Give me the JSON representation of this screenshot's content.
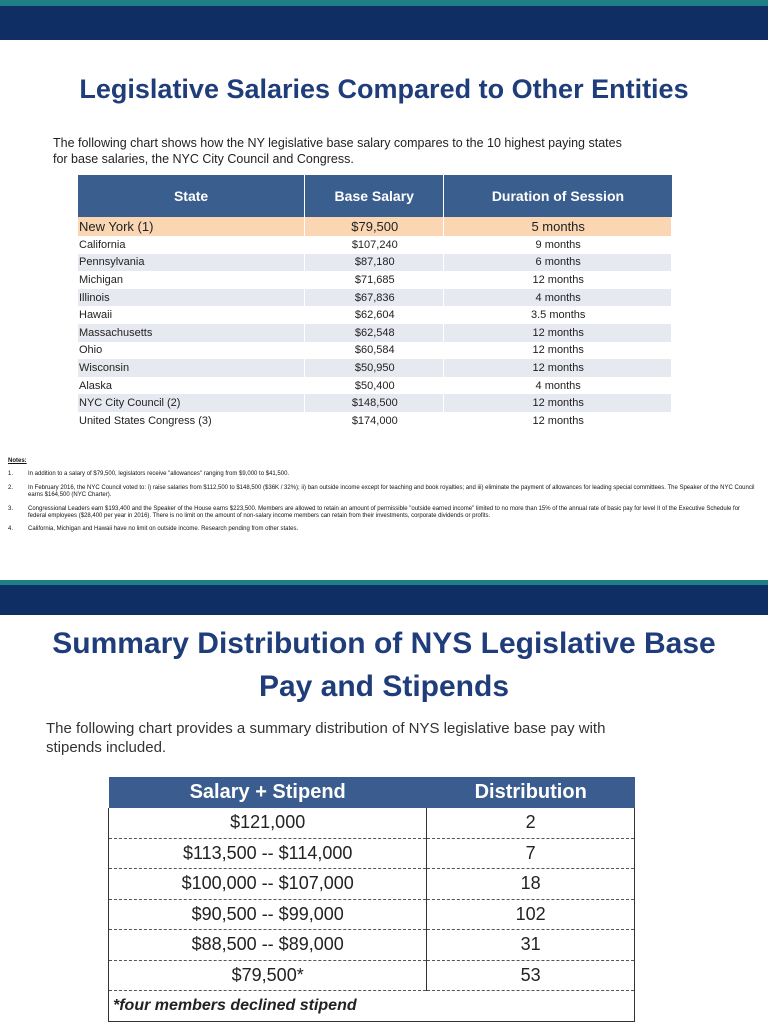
{
  "slide1": {
    "title": "Legislative Salaries Compared to Other Entities",
    "intro": "The following chart shows how the NY legislative base salary compares to the 10 highest paying states for base salaries, the NYC City Council and Congress.",
    "table": {
      "columns": [
        "State",
        "Base Salary",
        "Duration of Session"
      ],
      "rows": [
        [
          "New York (1)",
          "$79,500",
          "5 months"
        ],
        [
          "California",
          "$107,240",
          "9 months"
        ],
        [
          "Pennsylvania",
          "$87,180",
          "6 months"
        ],
        [
          "Michigan",
          "$71,685",
          "12 months"
        ],
        [
          "Illinois",
          "$67,836",
          "4 months"
        ],
        [
          "Hawaii",
          "$62,604",
          "3.5 months"
        ],
        [
          "Massachusetts",
          "$62,548",
          "12 months"
        ],
        [
          "Ohio",
          "$60,584",
          "12 months"
        ],
        [
          "Wisconsin",
          "$50,950",
          "12 months"
        ],
        [
          "Alaska",
          "$50,400",
          "4 months"
        ],
        [
          "NYC City Council (2)",
          "$148,500",
          "12 months"
        ],
        [
          "United States Congress (3)",
          "$174,000",
          "12 months"
        ]
      ]
    },
    "notes": {
      "heading": "Notes:",
      "items": [
        {
          "number": "1.",
          "text": "In addition to a salary of $79,500, legislators receive \"allowances\" ranging from $9,000 to $41,500."
        },
        {
          "number": "2.",
          "text": "In February 2016, the NYC Council voted to: i) raise salaries from $112,500 to $148,500 ($36K / 32%); ii) ban outside income except for teaching and book royalties; and iii) eliminate the payment of allowances for leading special committees. The Speaker of the NYC Council earns $164,500 (NYC Charter)."
        },
        {
          "number": "3.",
          "text": "Congressional Leaders earn $193,400 and the Speaker of the House earns $223,500. Members are allowed to retain an amount of permissible \"outside earned income\" limited to no more than 15% of the annual rate of basic pay for level II of the Executive Schedule for federal employees ($28,400 per year in 2016). There is no limit on the amount of non-salary income members can retain from their investments, corporate dividends or profits."
        },
        {
          "number": "4.",
          "text": "California, Michigan and Hawaii have no limit on outside income. Research pending from other states."
        }
      ]
    }
  },
  "slide2": {
    "title": "Summary Distribution of NYS Legislative Base Pay and Stipends",
    "intro": "The following chart provides a summary distribution of NYS legislative base pay with stipends included.",
    "table": {
      "columns": [
        "Salary + Stipend",
        "Distribution"
      ],
      "rows": [
        [
          "$121,000",
          "2"
        ],
        [
          "$113,500 -- $114,000",
          "7"
        ],
        [
          "$100,000 -- $107,000",
          "18"
        ],
        [
          "$90,500 -- $99,000",
          "102"
        ],
        [
          "$88,500 -- $89,000",
          "31"
        ],
        [
          "$79,500*",
          "53"
        ]
      ],
      "footnote": "*four members declined stipend"
    }
  }
}
